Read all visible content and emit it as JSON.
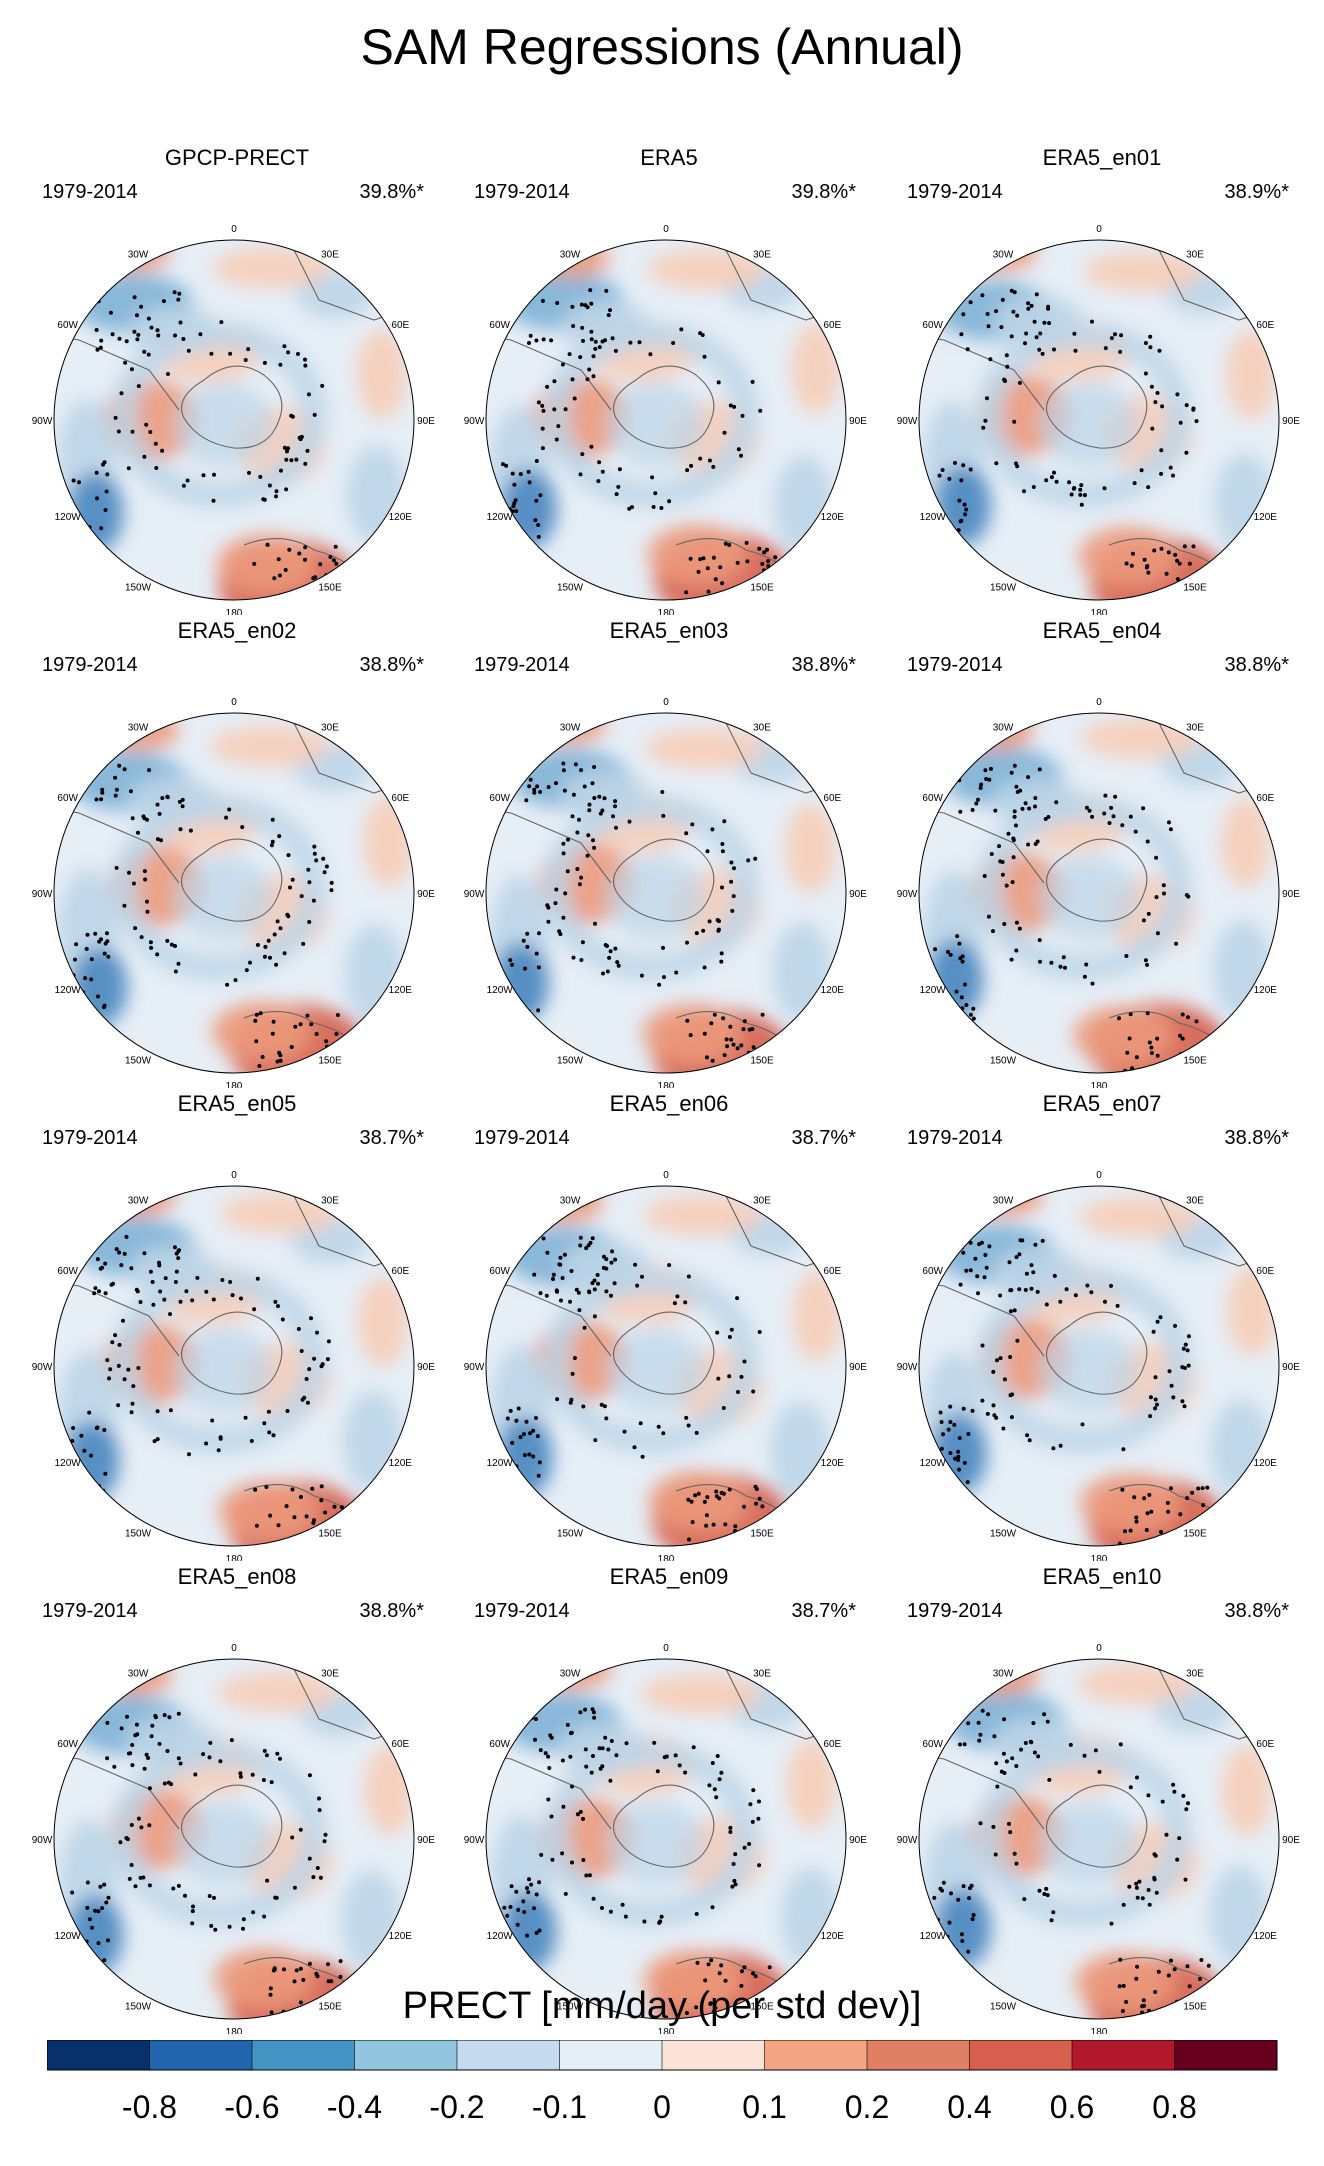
{
  "title": "SAM Regressions (Annual)",
  "period": "1979-2014",
  "lon_labels": [
    "0",
    "30E",
    "60E",
    "90E",
    "120E",
    "150E",
    "180",
    "150W",
    "120W",
    "90W",
    "60W",
    "30W"
  ],
  "panels": [
    {
      "name": "GPCP-PRECT",
      "pct": "39.8%*"
    },
    {
      "name": "ERA5",
      "pct": "39.8%*"
    },
    {
      "name": "ERA5_en01",
      "pct": "38.9%*"
    },
    {
      "name": "ERA5_en02",
      "pct": "38.8%*"
    },
    {
      "name": "ERA5_en03",
      "pct": "38.8%*"
    },
    {
      "name": "ERA5_en04",
      "pct": "38.8%*"
    },
    {
      "name": "ERA5_en05",
      "pct": "38.7%*"
    },
    {
      "name": "ERA5_en06",
      "pct": "38.7%*"
    },
    {
      "name": "ERA5_en07",
      "pct": "38.8%*"
    },
    {
      "name": "ERA5_en08",
      "pct": "38.8%*"
    },
    {
      "name": "ERA5_en09",
      "pct": "38.7%*"
    },
    {
      "name": "ERA5_en10",
      "pct": "38.8%*"
    }
  ],
  "colorbar": {
    "title": "PRECT [mm/day (per std dev)]",
    "labels": [
      "-0.8",
      "-0.6",
      "-0.4",
      "-0.2",
      "-0.1",
      "0",
      "0.1",
      "0.2",
      "0.4",
      "0.6",
      "0.8"
    ],
    "colors": [
      "#08306b",
      "#2166ac",
      "#4393c3",
      "#92c5de",
      "#c6dbef",
      "#e6eef6",
      "#fbe3d9",
      "#f4a582",
      "#e08062",
      "#d6604d",
      "#b2182b",
      "#67001f"
    ]
  },
  "palette": {
    "ocean_neutral": "#e6eef6",
    "positive_light": "#f7cdb8",
    "positive_mid": "#ec9a7c",
    "positive_strong": "#d6604d",
    "negative_light": "#bcd5e8",
    "negative_mid": "#7fb1d6",
    "negative_strong": "#4a87c0",
    "coast": "#666666"
  }
}
